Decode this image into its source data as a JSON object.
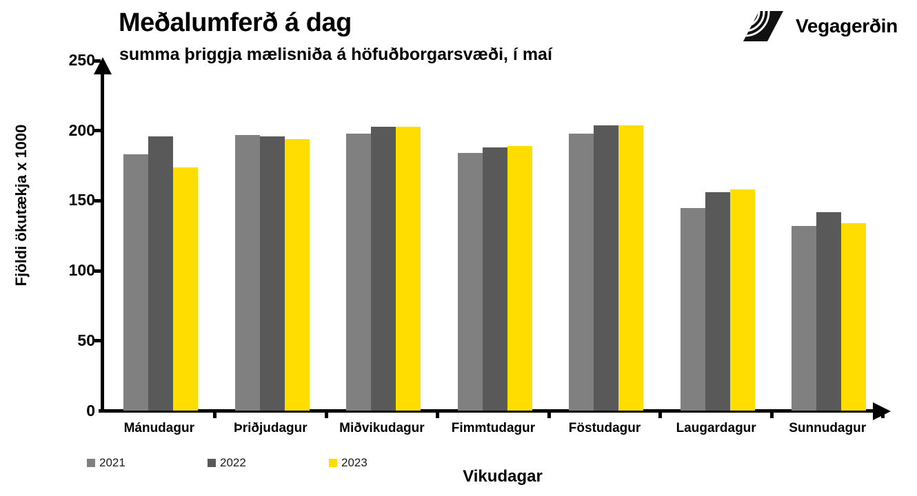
{
  "header": {
    "title": "Meðalumferð á dag",
    "subtitle": "summa þriggja mælisniða á höfuðborgarsvæði, í maí",
    "logo_text": "Vegagerðin"
  },
  "chart_data": {
    "type": "bar",
    "title": "Meðalumferð á dag",
    "subtitle": "summa þriggja mælisniða á höfuðborgarsvæði, í maí",
    "categories": [
      "Mánudagur",
      "Þriðjudagur",
      "Miðvikudagur",
      "Fimmtudagur",
      "Föstudagur",
      "Laugardagur",
      "Sunnudagur"
    ],
    "series": [
      {
        "name": "2021",
        "color": "#808080",
        "values": [
          183,
          197,
          198,
          184,
          198,
          145,
          132
        ]
      },
      {
        "name": "2022",
        "color": "#595959",
        "values": [
          196,
          196,
          203,
          188,
          204,
          156,
          142
        ]
      },
      {
        "name": "2023",
        "color": "#FFDD00",
        "values": [
          174,
          194,
          203,
          189,
          204,
          158,
          134
        ]
      }
    ],
    "xlabel": "Vikudagar",
    "ylabel": "Fjöldi ökutækja x 1000",
    "ylim": [
      0,
      250
    ],
    "yticks": [
      0,
      50,
      100,
      150,
      200,
      250
    ],
    "grid": false,
    "legend_position": "bottom-left",
    "axis_color": "#000000",
    "background": "#FFFFFF"
  }
}
